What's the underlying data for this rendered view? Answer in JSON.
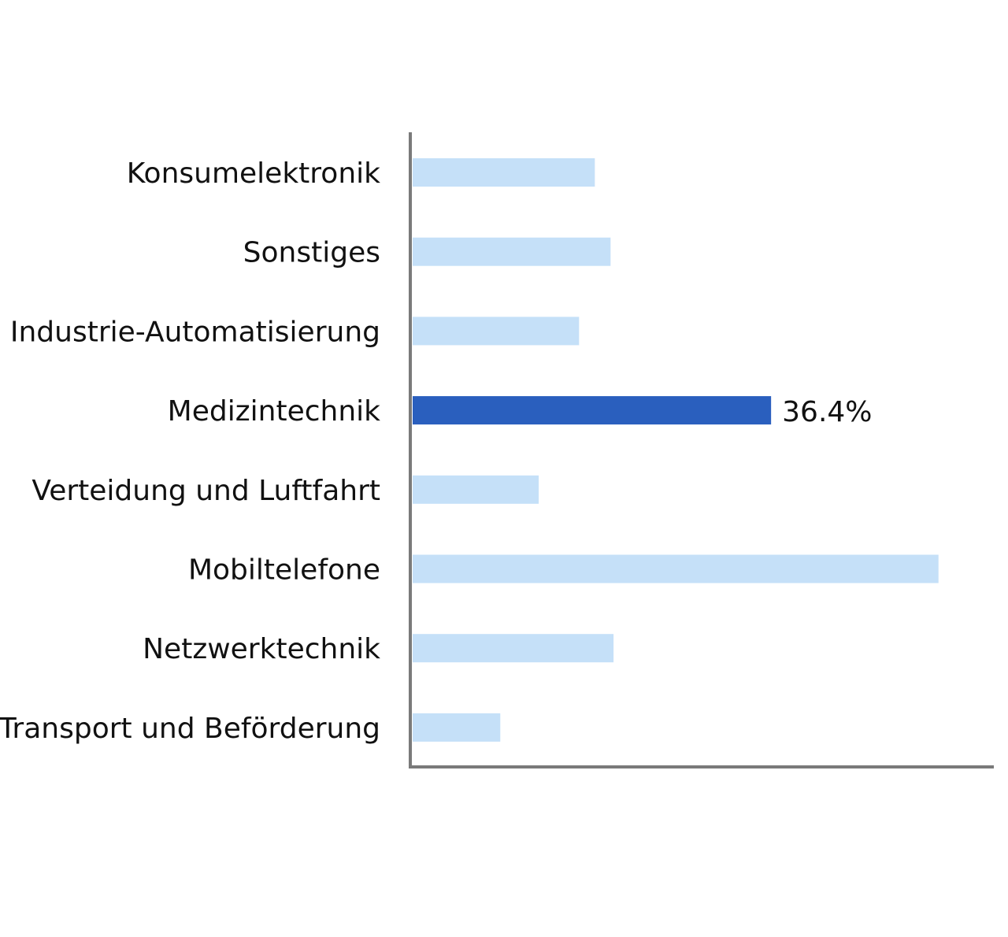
{
  "chart_data": {
    "type": "bar",
    "orientation": "horizontal",
    "categories": [
      "Konsumelektronik",
      "Sonstiges",
      "Industrie-Automatisierung",
      "Medizintechnik",
      "Verteidung und Luftfahrt",
      "Mobiltelefone",
      "Netzwerktechnik",
      "Transport und Beförderung"
    ],
    "values": [
      18.5,
      20.1,
      16.9,
      36.4,
      12.8,
      53.4,
      20.4,
      8.9
    ],
    "data_labels": [
      "",
      "",
      "",
      "36.4%",
      "",
      "",
      "",
      ""
    ],
    "highlight_index": 3,
    "xlim": [
      0,
      58.7
    ],
    "grid": false,
    "legend": "none",
    "colors": {
      "bar": "#c5e0f8",
      "highlight": "#2a5fbe",
      "axis": "#7a7a7a",
      "text": "#111111"
    }
  }
}
